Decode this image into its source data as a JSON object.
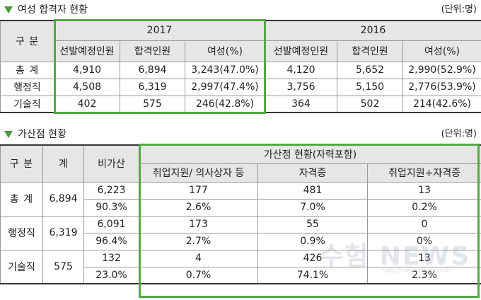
{
  "section1": {
    "title": "여성 합격자 현황",
    "unit": "(단위:명)",
    "header": {
      "category": "구  분",
      "year_2017": "2017",
      "year_2016": "2016",
      "cols_2017": [
        "선발예정인원",
        "합격인원",
        "여성(%)"
      ],
      "cols_2016": [
        "선발예정인원",
        "합격인원",
        "여성(%)"
      ]
    },
    "rows": [
      {
        "label": "총  계",
        "v": [
          "4,910",
          "6,894",
          "3,243(47.0%)",
          "4,120",
          "5,652",
          "2,990(52.9%)"
        ]
      },
      {
        "label": "행정직",
        "v": [
          "4,508",
          "6,319",
          "2,997(47.4%)",
          "3,756",
          "5,150",
          "2,776(53.9%)"
        ]
      },
      {
        "label": "기술직",
        "v": [
          "402",
          "575",
          "246(42.8%)",
          "364",
          "502",
          "214(42.6%)"
        ]
      }
    ]
  },
  "section2": {
    "title": "가산점 현황",
    "unit": "(단위:명)",
    "header": {
      "category": "구  분",
      "total": "계",
      "non_bonus": "비가산",
      "group": "가산점 현황(자력포함)",
      "cols": [
        "취업지원/ 의사상자 등",
        "자격증",
        "취업지원+자격증"
      ]
    },
    "rows": [
      {
        "label": "총  계",
        "total": "6,894",
        "count": [
          "6,223",
          "177",
          "481",
          "13"
        ],
        "pct": [
          "90.3%",
          "2.6%",
          "7.0%",
          "0.2%"
        ]
      },
      {
        "label": "행정직",
        "total": "6,319",
        "count": [
          "6,091",
          "173",
          "55",
          "0"
        ],
        "pct": [
          "96.4%",
          "2.7%",
          "0.9%",
          "0%"
        ]
      },
      {
        "label": "기술직",
        "total": "575",
        "count": [
          "132",
          "4",
          "426",
          "13"
        ],
        "pct": [
          "23.0%",
          "0.7%",
          "74.1%",
          "2.3%"
        ]
      }
    ]
  },
  "watermark": "수험 NEWS",
  "watermark_url": "http://newsstudy.co.kr"
}
